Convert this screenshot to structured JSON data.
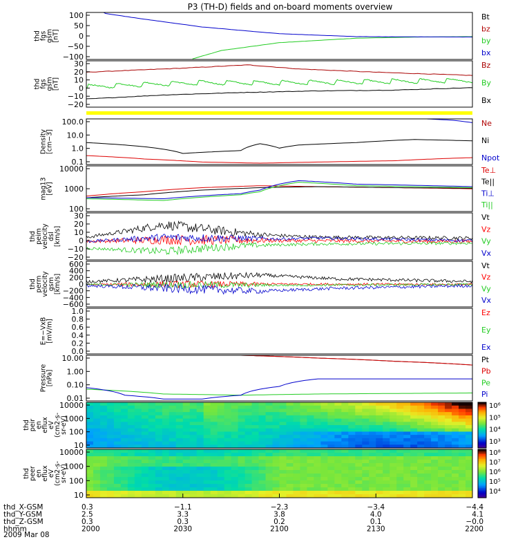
{
  "title": "P3 (TH-D) fields and on-board moments overview",
  "chart_data": [
    {
      "type": "line",
      "ylabel": [
        "thd",
        "fgs",
        "gsm",
        "[nT]"
      ],
      "ytick_labels": [
        "100",
        "50",
        "0",
        "−50",
        "−100"
      ],
      "ylim": [
        -100,
        110
      ],
      "series": [
        {
          "name": "Bt",
          "color": "#000000",
          "values": []
        },
        {
          "name": "bz",
          "color": "#b00000",
          "values": []
        },
        {
          "name": "by",
          "color": "#22cc22",
          "x": [
            0.27,
            0.35,
            0.5,
            0.7,
            0.85,
            1.0
          ],
          "values": [
            -100,
            -60,
            -25,
            -5,
            0,
            2
          ]
        },
        {
          "name": "bx",
          "color": "#0000cc",
          "x": [
            0.0,
            0.05,
            0.15,
            0.3,
            0.5,
            0.7,
            1.0
          ],
          "values": [
            150,
            105,
            80,
            45,
            15,
            2,
            0
          ]
        }
      ]
    },
    {
      "type": "line",
      "ylabel": [
        "thd",
        "fgs",
        "gsm",
        "[nT]"
      ],
      "ytick_labels": [
        "30",
        "20",
        "10",
        "0",
        "−10",
        "−20"
      ],
      "ylim": [
        -25,
        32
      ],
      "series": [
        {
          "name": "Bz",
          "color": "#aa0000",
          "x": [
            0,
            0.1,
            0.25,
            0.42,
            0.55,
            0.75,
            1.0
          ],
          "values": [
            18,
            20,
            23,
            27,
            22,
            18,
            14
          ]
        },
        {
          "name": "By",
          "color": "#22cc22",
          "x": [
            0,
            0.15,
            0.3,
            0.5,
            0.7,
            1.0
          ],
          "values": [
            0,
            3,
            5,
            5,
            6,
            8
          ],
          "sawtooth": 6
        },
        {
          "name": "Bx",
          "color": "#000000",
          "x": [
            0,
            0.2,
            0.4,
            0.6,
            0.8,
            1.0
          ],
          "values": [
            -15,
            -10,
            -7,
            -5,
            -4,
            -1
          ]
        }
      ]
    },
    {
      "type": "bar",
      "series": [
        {
          "name": "",
          "color": "#ffff00"
        }
      ]
    },
    {
      "type": "line",
      "yscale": "log",
      "ylabel": [
        "Density",
        "[cm−3]"
      ],
      "ytick_labels": [
        "100.0",
        "10.0",
        "1.0",
        "0.1"
      ],
      "ylim": [
        0.08,
        150
      ],
      "series": [
        {
          "name": "Ne",
          "color": "#b00000",
          "values": []
        },
        {
          "name": "Ni",
          "color": "#000000",
          "x": [
            0,
            0.1,
            0.25,
            0.4,
            0.45,
            0.5,
            0.55,
            0.7,
            0.85,
            1.0
          ],
          "values": [
            3,
            2,
            0.5,
            0.8,
            2.5,
            1.2,
            2,
            3,
            5,
            4
          ]
        },
        {
          "name": "Npot",
          "color": "#0000cc",
          "x": [
            0.88,
            0.95,
            1.0
          ],
          "values": [
            150,
            120,
            80
          ]
        },
        {
          "name": "",
          "color": "#dd0000",
          "x": [
            0,
            0.15,
            0.3,
            0.45,
            0.6,
            0.8,
            1.0
          ],
          "values": [
            0.35,
            0.2,
            0.12,
            0.1,
            0.12,
            0.15,
            0.25
          ]
        }
      ]
    },
    {
      "type": "line",
      "yscale": "log",
      "ylabel": [
        "mag13",
        "[eV]"
      ],
      "ytick_labels": [
        "10000",
        "1000",
        "100"
      ],
      "ylim": [
        50,
        10000
      ],
      "series": [
        {
          "name": "Te⊥",
          "color": "#dd0000",
          "x": [
            0,
            0.15,
            0.3,
            0.45,
            0.6,
            0.8,
            1.0
          ],
          "values": [
            300,
            500,
            800,
            1000,
            900,
            800,
            700
          ]
        },
        {
          "name": "Te||",
          "color": "#000000",
          "x": [
            0,
            0.15,
            0.3,
            0.45,
            0.6,
            0.8,
            1.0
          ],
          "values": [
            250,
            350,
            600,
            800,
            900,
            800,
            750
          ]
        },
        {
          "name": "Ti⊥",
          "color": "#0000cc",
          "x": [
            0,
            0.2,
            0.4,
            0.45,
            0.55,
            0.7,
            1.0
          ],
          "values": [
            250,
            220,
            400,
            600,
            1800,
            1200,
            900
          ]
        },
        {
          "name": "Ti||",
          "color": "#22cc22",
          "x": [
            0,
            0.2,
            0.4,
            0.45,
            0.55,
            0.7,
            1.0
          ],
          "values": [
            220,
            180,
            350,
            500,
            1500,
            1000,
            800
          ]
        }
      ]
    },
    {
      "type": "line",
      "ylabel": [
        "thd",
        "peim",
        "velocity",
        "dsl",
        "[km/s]"
      ],
      "ytick_labels": [
        "30",
        "20",
        "10",
        "0",
        "−10",
        "−20"
      ],
      "ylim": [
        -22,
        34
      ],
      "series": [
        {
          "name": "Vt",
          "color": "#000000",
          "x": [
            0,
            0.1,
            0.2,
            0.3,
            0.45,
            0.6,
            1.0
          ],
          "values": [
            5,
            12,
            20,
            15,
            8,
            5,
            4
          ],
          "noise": 6
        },
        {
          "name": "Vz",
          "color": "#ff0000",
          "x": [
            0,
            0.2,
            0.5,
            1.0
          ],
          "values": [
            0,
            2,
            1,
            0
          ],
          "noise": 6
        },
        {
          "name": "Vy",
          "color": "#22cc22",
          "x": [
            0,
            0.2,
            0.4,
            0.6,
            1.0
          ],
          "values": [
            -8,
            -12,
            -5,
            -3,
            -2
          ],
          "noise": 5
        },
        {
          "name": "Vx",
          "color": "#0000cc",
          "x": [
            0,
            0.2,
            0.5,
            0.6,
            1.0
          ],
          "values": [
            0,
            5,
            3,
            4,
            1
          ],
          "noise": 5
        }
      ]
    },
    {
      "type": "line",
      "ylabel": [
        "thd",
        "perm",
        "velocity",
        "gsm",
        "[km/s]"
      ],
      "ytick_labels": [
        "600",
        "400",
        "200",
        "0",
        "−200",
        "−400",
        "−600"
      ],
      "ylim": [
        -600,
        620
      ],
      "series": [
        {
          "name": "Vt",
          "color": "#000000",
          "x": [
            0,
            0.2,
            0.45,
            0.65,
            1.0
          ],
          "values": [
            80,
            150,
            250,
            150,
            80
          ],
          "noise": 120
        },
        {
          "name": "Vz",
          "color": "#ff0000",
          "x": [
            0,
            0.5,
            1.0
          ],
          "values": [
            0,
            10,
            0
          ],
          "noise": 90
        },
        {
          "name": "Vy",
          "color": "#22cc22",
          "x": [
            0,
            0.5,
            1.0
          ],
          "values": [
            0,
            -20,
            0
          ],
          "noise": 90
        },
        {
          "name": "Vx",
          "color": "#0000cc",
          "x": [
            0,
            0.2,
            0.45,
            0.65,
            1.0
          ],
          "values": [
            -30,
            -100,
            -180,
            -100,
            -30
          ],
          "noise": 120
        }
      ]
    },
    {
      "type": "line",
      "ylabel": [
        "E=−VxB",
        "[mV/m]"
      ],
      "ytick_labels": [
        "1.0",
        "0.8",
        "0.6",
        "0.4",
        "0.2",
        "0.0"
      ],
      "ylim": [
        0,
        1
      ],
      "series": [
        {
          "name": "Ez",
          "color": "#ff0000",
          "values": []
        },
        {
          "name": "Ey",
          "color": "#22cc22",
          "values": []
        },
        {
          "name": "Ex",
          "color": "#0000cc",
          "values": []
        }
      ]
    },
    {
      "type": "line",
      "yscale": "log",
      "ylabel": [
        "Pressure",
        "[nPa]"
      ],
      "ytick_labels": [
        "10.00",
        "1.00",
        "0.10",
        "0.01"
      ],
      "ylim": [
        0.007,
        30
      ],
      "series": [
        {
          "name": "Pt",
          "color": "#000000",
          "x": [
            0.4,
            0.6,
            0.8,
            1.0
          ],
          "values": [
            30,
            18,
            10,
            5
          ]
        },
        {
          "name": "Pb",
          "color": "#dd0000",
          "x": [
            0.4,
            0.6,
            0.8,
            1.0
          ],
          "values": [
            30,
            18,
            10,
            5
          ]
        },
        {
          "name": "Pe",
          "color": "#22cc22",
          "x": [
            0,
            0.2,
            0.4,
            0.6,
            1.0
          ],
          "values": [
            0.06,
            0.025,
            0.02,
            0.025,
            0.03
          ]
        },
        {
          "name": "Pi",
          "color": "#0000cc",
          "x": [
            0,
            0.1,
            0.2,
            0.3,
            0.4,
            0.5,
            0.6,
            1.0
          ],
          "values": [
            0.08,
            0.02,
            0.01,
            0.01,
            0.02,
            0.1,
            0.4,
            0.4
          ]
        }
      ]
    },
    {
      "type": "heatmap",
      "ylabel": [
        "thd",
        "peir",
        "en",
        "eflux",
        "eV",
        "(cm2-s-",
        "sr-eV)"
      ],
      "ytick_labels": [
        "10000",
        "1000",
        "100",
        "10"
      ],
      "colorbar_labels": [
        "10⁶",
        "10⁵",
        "10⁴",
        "10³"
      ]
    },
    {
      "type": "heatmap",
      "ylabel": [
        "thd",
        "peer",
        "en",
        "eflux",
        "eV",
        "(cm2-s-",
        "sr-eV)"
      ],
      "ytick_labels": [
        "10000",
        "1000",
        "100",
        "10"
      ],
      "colorbar_labels": [
        "10⁸",
        "10⁷",
        "10⁶",
        "10⁵",
        "10⁴"
      ]
    }
  ],
  "footer": {
    "rows": [
      {
        "label": "thd_X-GSM",
        "values": [
          "0.3",
          "−1.1",
          "−2.3",
          "−3.4",
          "−4.4"
        ]
      },
      {
        "label": "thd_Y-GSM",
        "values": [
          "2.5",
          "3.3",
          "3.8",
          "4.0",
          "4.1"
        ]
      },
      {
        "label": "thd_Z-GSM",
        "values": [
          "0.3",
          "0.3",
          "0.2",
          "0.1",
          "−0.0"
        ]
      },
      {
        "label": "hhmm",
        "values": [
          "2000",
          "2030",
          "2100",
          "2130",
          "2200"
        ]
      }
    ],
    "date": "2009 Mar 08"
  }
}
